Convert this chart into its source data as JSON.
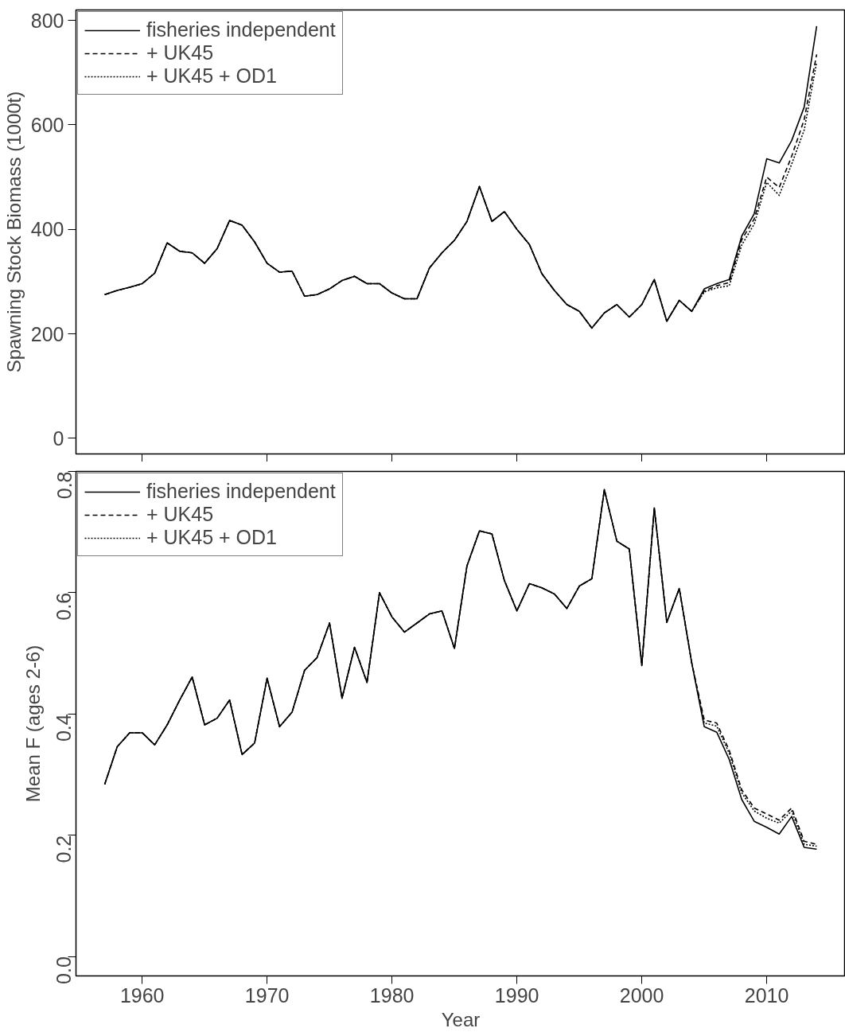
{
  "chart_data": [
    {
      "type": "line",
      "ylabel": "Spawning Stock Biomass (1000t)",
      "tick_labels": "y",
      "xlim": [
        1954.7,
        2016.3
      ],
      "ylim": [
        -30,
        820
      ],
      "xticks": [
        {
          "value": 1960,
          "label": null
        },
        {
          "value": 1970,
          "label": null
        },
        {
          "value": 1980,
          "label": null
        },
        {
          "value": 1990,
          "label": null
        },
        {
          "value": 2000,
          "label": null
        },
        {
          "value": 2010,
          "label": null
        }
      ],
      "yticks": [
        0,
        200,
        400,
        600,
        800
      ],
      "legend": "top left",
      "grid": false,
      "x": [
        1957,
        1958,
        1959,
        1960,
        1961,
        1962,
        1963,
        1964,
        1965,
        1966,
        1967,
        1968,
        1969,
        1970,
        1971,
        1972,
        1973,
        1974,
        1975,
        1976,
        1977,
        1978,
        1979,
        1980,
        1981,
        1982,
        1983,
        1984,
        1985,
        1986,
        1987,
        1988,
        1989,
        1990,
        1991,
        1992,
        1993,
        1994,
        1995,
        1996,
        1997,
        1998,
        1999,
        2000,
        2001,
        2002,
        2003,
        2004,
        2005,
        2006,
        2007,
        2008,
        2009,
        2010,
        2011,
        2012,
        2013,
        2014
      ],
      "series": [
        {
          "name": "fisheries independent",
          "color": "#000000",
          "line_style": "solid",
          "values": [
            275,
            283,
            289,
            296,
            316,
            374,
            358,
            355,
            335,
            363,
            417,
            408,
            376,
            335,
            318,
            320,
            272,
            275,
            286,
            302,
            310,
            296,
            296,
            278,
            267,
            267,
            326,
            355,
            379,
            415,
            482,
            415,
            434,
            400,
            371,
            315,
            283,
            256,
            243,
            211,
            240,
            256,
            232,
            256,
            304,
            224,
            264,
            243,
            286,
            296,
            304,
            387,
            430,
            535,
            527,
            570,
            634,
            789
          ]
        },
        {
          "name": "+ UK45",
          "color": "#000000",
          "line_style": "dashed",
          "values": [
            275,
            283,
            289,
            296,
            316,
            374,
            358,
            355,
            335,
            363,
            417,
            408,
            376,
            335,
            318,
            320,
            272,
            275,
            286,
            302,
            310,
            296,
            296,
            278,
            267,
            267,
            326,
            355,
            379,
            415,
            482,
            415,
            434,
            400,
            371,
            315,
            283,
            256,
            243,
            211,
            240,
            256,
            232,
            256,
            304,
            224,
            264,
            243,
            282,
            292,
            298,
            380,
            420,
            500,
            480,
            540,
            610,
            735
          ]
        },
        {
          "name": "+ UK45 + OD1",
          "color": "#000000",
          "line_style": "dotted",
          "values": [
            275,
            283,
            289,
            296,
            316,
            374,
            358,
            355,
            335,
            363,
            417,
            408,
            376,
            335,
            318,
            320,
            272,
            275,
            286,
            302,
            310,
            296,
            296,
            278,
            267,
            267,
            326,
            355,
            379,
            415,
            482,
            415,
            434,
            400,
            371,
            315,
            283,
            256,
            243,
            211,
            240,
            256,
            232,
            256,
            304,
            224,
            264,
            243,
            280,
            288,
            292,
            370,
            410,
            490,
            465,
            525,
            590,
            720
          ]
        }
      ]
    },
    {
      "type": "line",
      "xlabel": "Year",
      "ylabel": "Mean F (ages 2-6)",
      "xlim": [
        1954.7,
        2016.3
      ],
      "ylim": [
        -0.032,
        0.8
      ],
      "xticks": [
        1960,
        1970,
        1980,
        1990,
        2000,
        2010
      ],
      "yticks": [
        {
          "value": 0,
          "label": "0.0"
        },
        0.2,
        0.4,
        0.6,
        0.8
      ],
      "legend": "top left",
      "grid": false,
      "x": [
        1957,
        1958,
        1959,
        1960,
        1961,
        1962,
        1963,
        1964,
        1965,
        1966,
        1967,
        1968,
        1969,
        1970,
        1971,
        1972,
        1973,
        1974,
        1975,
        1976,
        1977,
        1978,
        1979,
        1980,
        1981,
        1982,
        1983,
        1984,
        1985,
        1986,
        1987,
        1988,
        1989,
        1990,
        1991,
        1992,
        1993,
        1994,
        1995,
        1996,
        1997,
        1998,
        1999,
        2000,
        2001,
        2002,
        2003,
        2004,
        2005,
        2006,
        2007,
        2008,
        2009,
        2010,
        2011,
        2012,
        2013,
        2014
      ],
      "series": [
        {
          "name": "fisheries independent",
          "color": "#000000",
          "line_style": "solid",
          "values": [
            0.284,
            0.346,
            0.369,
            0.369,
            0.349,
            0.382,
            0.423,
            0.461,
            0.382,
            0.393,
            0.423,
            0.333,
            0.352,
            0.459,
            0.379,
            0.403,
            0.472,
            0.493,
            0.55,
            0.426,
            0.51,
            0.452,
            0.6,
            0.56,
            0.535,
            0.55,
            0.565,
            0.57,
            0.508,
            0.644,
            0.702,
            0.697,
            0.62,
            0.57,
            0.615,
            0.608,
            0.598,
            0.574,
            0.611,
            0.623,
            0.77,
            0.685,
            0.672,
            0.48,
            0.74,
            0.551,
            0.607,
            0.484,
            0.379,
            0.37,
            0.325,
            0.259,
            0.223,
            0.213,
            0.202,
            0.231,
            0.18,
            0.177
          ]
        },
        {
          "name": "+ UK45",
          "color": "#000000",
          "line_style": "dashed",
          "values": [
            0.284,
            0.346,
            0.369,
            0.369,
            0.349,
            0.382,
            0.423,
            0.461,
            0.382,
            0.393,
            0.423,
            0.333,
            0.352,
            0.459,
            0.379,
            0.403,
            0.472,
            0.493,
            0.55,
            0.426,
            0.51,
            0.452,
            0.6,
            0.56,
            0.535,
            0.55,
            0.565,
            0.57,
            0.508,
            0.644,
            0.702,
            0.697,
            0.62,
            0.57,
            0.615,
            0.608,
            0.598,
            0.574,
            0.611,
            0.623,
            0.77,
            0.685,
            0.672,
            0.48,
            0.74,
            0.551,
            0.607,
            0.484,
            0.39,
            0.385,
            0.34,
            0.275,
            0.245,
            0.235,
            0.225,
            0.245,
            0.19,
            0.185
          ]
        },
        {
          "name": "+ UK45 + OD1",
          "color": "#000000",
          "line_style": "dotted",
          "values": [
            0.284,
            0.346,
            0.369,
            0.369,
            0.349,
            0.382,
            0.423,
            0.461,
            0.382,
            0.393,
            0.423,
            0.333,
            0.352,
            0.459,
            0.379,
            0.403,
            0.472,
            0.493,
            0.55,
            0.426,
            0.51,
            0.452,
            0.6,
            0.56,
            0.535,
            0.55,
            0.565,
            0.57,
            0.508,
            0.644,
            0.702,
            0.697,
            0.62,
            0.57,
            0.615,
            0.608,
            0.598,
            0.574,
            0.611,
            0.623,
            0.77,
            0.685,
            0.672,
            0.48,
            0.74,
            0.551,
            0.607,
            0.484,
            0.385,
            0.38,
            0.335,
            0.27,
            0.24,
            0.228,
            0.22,
            0.24,
            0.185,
            0.182
          ]
        }
      ]
    }
  ]
}
